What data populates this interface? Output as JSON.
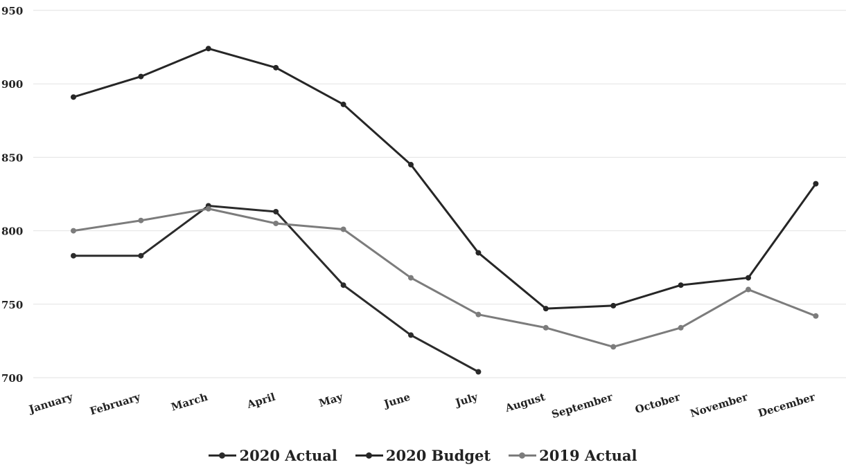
{
  "chart_data": {
    "type": "line",
    "categories": [
      "January",
      "February",
      "March",
      "April",
      "May",
      "June",
      "July",
      "August",
      "September",
      "October",
      "November",
      "December"
    ],
    "series": [
      {
        "name": "2020 Actual",
        "color": "#2b2b2b",
        "values": [
          783,
          783,
          817,
          813,
          763,
          729,
          704,
          null,
          null,
          null,
          null,
          null
        ]
      },
      {
        "name": "2020 Budget",
        "color": "#262626",
        "values": [
          891,
          905,
          924,
          911,
          886,
          845,
          785,
          747,
          749,
          763,
          768,
          832
        ]
      },
      {
        "name": "2019 Actual",
        "color": "#7c7c7c",
        "values": [
          800,
          807,
          815,
          805,
          801,
          768,
          743,
          734,
          721,
          734,
          760,
          742
        ]
      }
    ],
    "yticks": [
      700,
      750,
      800,
      850,
      900,
      950
    ],
    "ylim": [
      700,
      950
    ],
    "grid": true,
    "legend_position": "bottom"
  }
}
